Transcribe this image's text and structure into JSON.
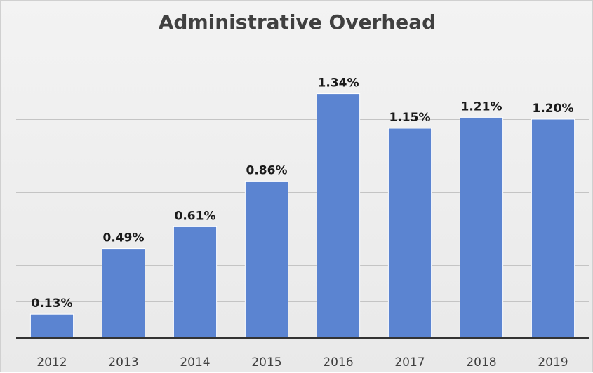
{
  "chart_data": {
    "type": "bar",
    "title": "Administrative Overhead",
    "xlabel": "",
    "ylabel": "",
    "categories": [
      "2012",
      "2013",
      "2014",
      "2015",
      "2016",
      "2017",
      "2018",
      "2019"
    ],
    "values": [
      0.13,
      0.49,
      0.61,
      0.86,
      1.34,
      1.15,
      1.21,
      1.2
    ],
    "data_labels": [
      "0.13%",
      "0.49%",
      "0.61%",
      "0.86%",
      "1.34%",
      "1.15%",
      "1.21%",
      "1.20%"
    ],
    "ylim": [
      0,
      1.6
    ],
    "y_grid_step": 0.2,
    "grid": true,
    "legend": "none",
    "bar_color": "#5B84D1",
    "background_color": "#EDEDED"
  }
}
